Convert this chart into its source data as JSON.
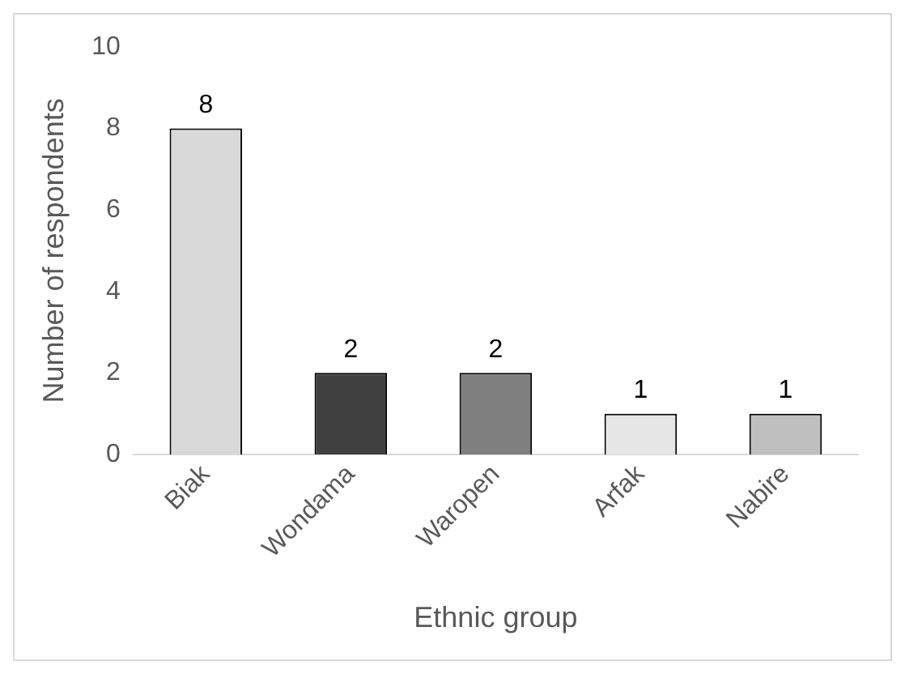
{
  "chart_data": {
    "type": "bar",
    "xlabel": "Ethnic group",
    "ylabel": "Number of respondents",
    "categories": [
      "Biak",
      "Wondama",
      "Waropen",
      "Arfak",
      "Nabire"
    ],
    "values": [
      8,
      2,
      2,
      1,
      1
    ],
    "colors": [
      "#d9d9d9",
      "#404040",
      "#7f7f7f",
      "#e6e6e6",
      "#bfbfbf"
    ],
    "ylim": [
      0,
      10
    ],
    "yticks": [
      0,
      2,
      4,
      6,
      8,
      10
    ],
    "grid": false,
    "legend": false,
    "data_labels": true
  }
}
